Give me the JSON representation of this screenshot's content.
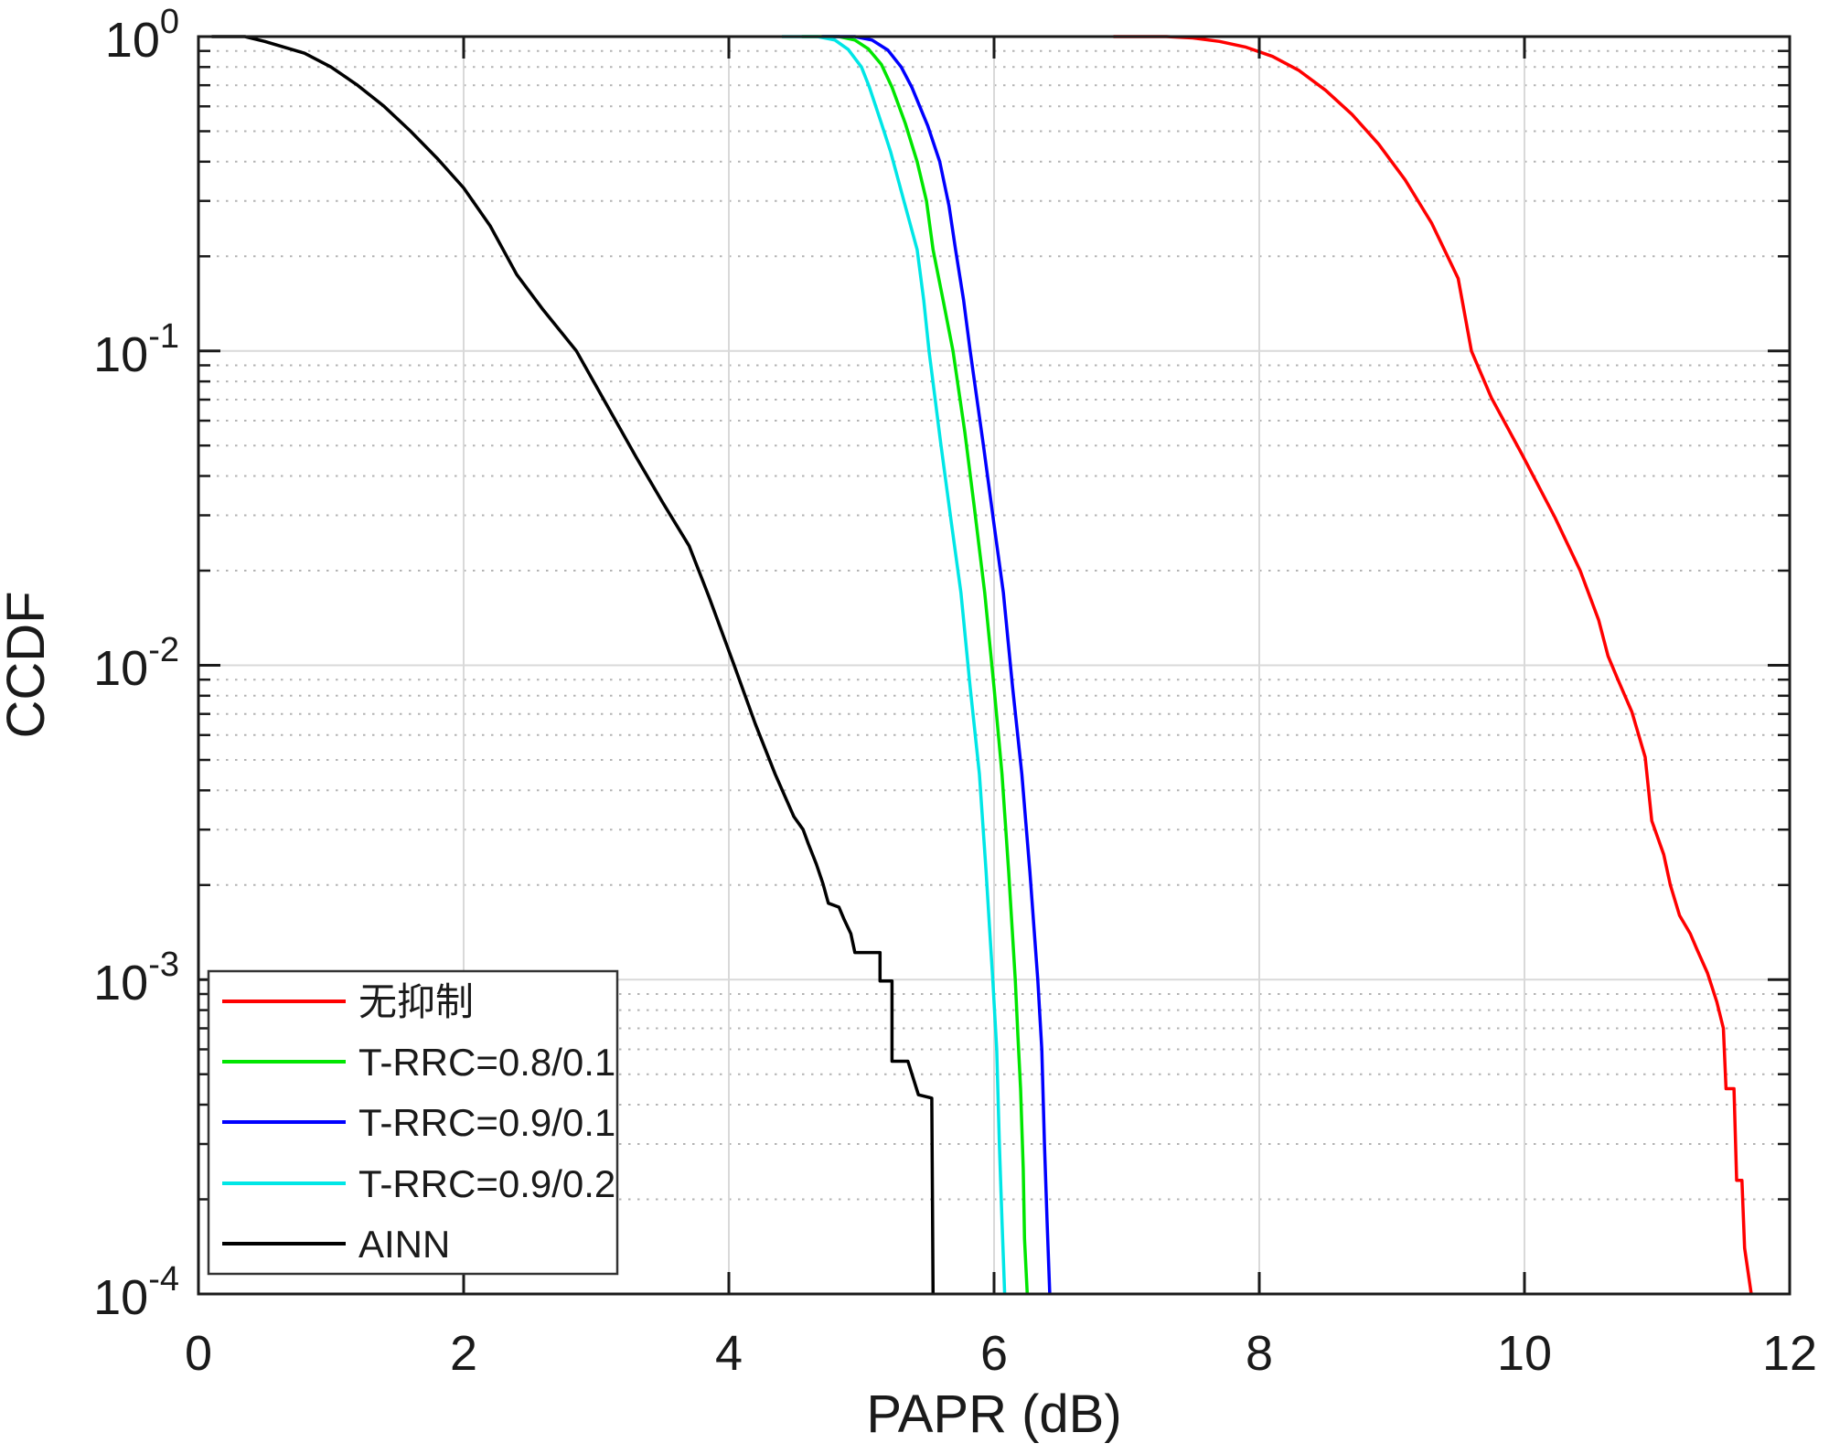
{
  "chart_data": {
    "type": "line",
    "title": "",
    "xlabel": "PAPR (dB)",
    "ylabel": "CCDF",
    "x_axis": {
      "min": 0,
      "max": 12,
      "ticks": [
        0,
        2,
        4,
        6,
        8,
        10,
        12
      ]
    },
    "x_tick_labels": [
      "0",
      "2",
      "4",
      "6",
      "8",
      "10",
      "12"
    ],
    "y_axis": {
      "scale": "log",
      "min": 0.0001,
      "max": 1,
      "tick_base": "10",
      "tick_exponent_labels": [
        "0",
        "-1",
        "-2",
        "-3",
        "-4"
      ]
    },
    "grid": {
      "major": true,
      "minor_y_dotted": true
    },
    "legend_position": "lower-left",
    "series": [
      {
        "name": "无抑制",
        "color": "#ff0000",
        "points": [
          [
            6.9,
            1
          ],
          [
            7.3,
            1
          ],
          [
            7.5,
            0.99
          ],
          [
            7.7,
            0.965
          ],
          [
            7.9,
            0.925
          ],
          [
            8.1,
            0.865
          ],
          [
            8.3,
            0.78
          ],
          [
            8.5,
            0.675
          ],
          [
            8.7,
            0.565
          ],
          [
            8.9,
            0.455
          ],
          [
            9.1,
            0.35
          ],
          [
            9.3,
            0.255
          ],
          [
            9.5,
            0.17
          ],
          [
            9.6,
            0.1
          ],
          [
            9.75,
            0.071
          ],
          [
            9.98,
            0.047
          ],
          [
            10.23,
            0.0295
          ],
          [
            10.42,
            0.02
          ],
          [
            10.56,
            0.0139
          ],
          [
            10.63,
            0.0107
          ],
          [
            10.7,
            0.0091
          ],
          [
            10.81,
            0.0071
          ],
          [
            10.91,
            0.0051
          ],
          [
            10.96,
            0.0032
          ],
          [
            11.05,
            0.0025
          ],
          [
            11.1,
            0.002
          ],
          [
            11.17,
            0.0016
          ],
          [
            11.25,
            0.0014
          ],
          [
            11.3,
            0.00125
          ],
          [
            11.38,
            0.00105
          ],
          [
            11.45,
            0.00085
          ],
          [
            11.5,
            0.0007
          ],
          [
            11.52,
            0.00045
          ],
          [
            11.58,
            0.00045
          ],
          [
            11.6,
            0.00023
          ],
          [
            11.64,
            0.00023
          ],
          [
            11.66,
            0.00014
          ],
          [
            11.71,
            0.0001
          ]
        ]
      },
      {
        "name": "T-RRC=0.8/0.1",
        "color": "#00e600",
        "points": [
          [
            4.55,
            1
          ],
          [
            4.83,
            1
          ],
          [
            4.95,
            0.975
          ],
          [
            5.05,
            0.915
          ],
          [
            5.15,
            0.815
          ],
          [
            5.23,
            0.69
          ],
          [
            5.33,
            0.53
          ],
          [
            5.42,
            0.4
          ],
          [
            5.49,
            0.3
          ],
          [
            5.54,
            0.21
          ],
          [
            5.62,
            0.142
          ],
          [
            5.69,
            0.1
          ],
          [
            5.78,
            0.055
          ],
          [
            5.85,
            0.032
          ],
          [
            5.93,
            0.017
          ],
          [
            6.0,
            0.0085
          ],
          [
            6.06,
            0.0045
          ],
          [
            6.11,
            0.0022
          ],
          [
            6.16,
            0.001
          ],
          [
            6.18,
            0.00066
          ],
          [
            6.2,
            0.00045
          ],
          [
            6.22,
            0.00025
          ],
          [
            6.23,
            0.00015
          ],
          [
            6.25,
            0.0001
          ]
        ]
      },
      {
        "name": "T-RRC=0.9/0.1",
        "color": "#0000ff",
        "points": [
          [
            4.7,
            1
          ],
          [
            4.95,
            1
          ],
          [
            5.08,
            0.975
          ],
          [
            5.2,
            0.905
          ],
          [
            5.3,
            0.8
          ],
          [
            5.38,
            0.69
          ],
          [
            5.5,
            0.52
          ],
          [
            5.59,
            0.4
          ],
          [
            5.66,
            0.29
          ],
          [
            5.71,
            0.21
          ],
          [
            5.77,
            0.145
          ],
          [
            5.82,
            0.1
          ],
          [
            5.92,
            0.05
          ],
          [
            6.0,
            0.028
          ],
          [
            6.07,
            0.017
          ],
          [
            6.14,
            0.0085
          ],
          [
            6.21,
            0.0045
          ],
          [
            6.27,
            0.0022
          ],
          [
            6.33,
            0.001
          ],
          [
            6.36,
            0.0006
          ],
          [
            6.38,
            0.0003
          ],
          [
            6.4,
            0.00017
          ],
          [
            6.42,
            0.0001
          ]
        ]
      },
      {
        "name": "T-RRC=0.9/0.2",
        "color": "#00e6e6",
        "points": [
          [
            4.4,
            1
          ],
          [
            4.67,
            1
          ],
          [
            4.8,
            0.975
          ],
          [
            4.9,
            0.91
          ],
          [
            5.0,
            0.8
          ],
          [
            5.06,
            0.69
          ],
          [
            5.15,
            0.53
          ],
          [
            5.22,
            0.43
          ],
          [
            5.32,
            0.3
          ],
          [
            5.42,
            0.21
          ],
          [
            5.47,
            0.145
          ],
          [
            5.51,
            0.1
          ],
          [
            5.6,
            0.05
          ],
          [
            5.68,
            0.028
          ],
          [
            5.75,
            0.017
          ],
          [
            5.82,
            0.0085
          ],
          [
            5.89,
            0.0045
          ],
          [
            5.94,
            0.0022
          ],
          [
            5.99,
            0.001
          ],
          [
            6.02,
            0.0006
          ],
          [
            6.04,
            0.0003
          ],
          [
            6.06,
            0.00017
          ],
          [
            6.08,
            0.0001
          ]
        ]
      },
      {
        "name": "AINN",
        "color": "#000000",
        "points": [
          [
            0.1,
            1
          ],
          [
            0.35,
            1
          ],
          [
            0.5,
            0.965
          ],
          [
            0.8,
            0.885
          ],
          [
            1.0,
            0.8
          ],
          [
            1.2,
            0.7
          ],
          [
            1.4,
            0.6
          ],
          [
            1.6,
            0.5
          ],
          [
            1.8,
            0.41
          ],
          [
            2.0,
            0.33
          ],
          [
            2.2,
            0.25
          ],
          [
            2.4,
            0.175
          ],
          [
            2.6,
            0.135
          ],
          [
            2.85,
            0.1
          ],
          [
            3.1,
            0.065
          ],
          [
            3.3,
            0.046
          ],
          [
            3.5,
            0.033
          ],
          [
            3.7,
            0.024
          ],
          [
            3.85,
            0.0165
          ],
          [
            4.04,
            0.01
          ],
          [
            4.2,
            0.0065
          ],
          [
            4.35,
            0.0045
          ],
          [
            4.49,
            0.0033
          ],
          [
            4.56,
            0.003
          ],
          [
            4.6,
            0.0027
          ],
          [
            4.66,
            0.00233
          ],
          [
            4.71,
            0.00202
          ],
          [
            4.75,
            0.00175
          ],
          [
            4.83,
            0.0017
          ],
          [
            4.87,
            0.00155
          ],
          [
            4.92,
            0.0014
          ],
          [
            4.95,
            0.00122
          ],
          [
            5.14,
            0.00122
          ],
          [
            5.14,
            0.00099
          ],
          [
            5.23,
            0.00099
          ],
          [
            5.23,
            0.00055
          ],
          [
            5.35,
            0.00055
          ],
          [
            5.43,
            0.00043
          ],
          [
            5.53,
            0.00042
          ],
          [
            5.54,
            0.0001
          ]
        ]
      }
    ]
  }
}
